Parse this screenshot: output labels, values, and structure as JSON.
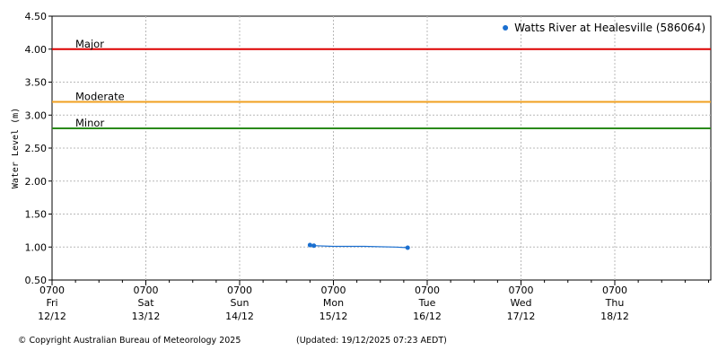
{
  "chart_data": {
    "type": "line",
    "ylabel": "Water Level (m)",
    "ylim": [
      0.5,
      4.5
    ],
    "yticks": [
      "0.50",
      "1.00",
      "1.50",
      "2.00",
      "2.50",
      "3.00",
      "3.50",
      "4.00",
      "4.50"
    ],
    "xlim_hours": [
      0,
      174
    ],
    "xticks": [
      {
        "time": "0700",
        "day": "Fri",
        "date": "12/12"
      },
      {
        "time": "0700",
        "day": "Sat",
        "date": "13/12"
      },
      {
        "time": "0700",
        "day": "Sun",
        "date": "14/12"
      },
      {
        "time": "0700",
        "day": "Mon",
        "date": "15/12"
      },
      {
        "time": "0700",
        "day": "Tue",
        "date": "16/12"
      },
      {
        "time": "0700",
        "day": "Wed",
        "date": "17/12"
      },
      {
        "time": "0700",
        "day": "Thu",
        "date": "18/12"
      }
    ],
    "grid": true,
    "legend_position": "top-right",
    "thresholds": [
      {
        "name": "Major",
        "value": 4.0,
        "color": "#dd0000"
      },
      {
        "name": "Moderate",
        "value": 3.2,
        "color": "#f0a020"
      },
      {
        "name": "Minor",
        "value": 2.8,
        "color": "#2a8a1a"
      }
    ],
    "series": [
      {
        "name": "Watts River at Healesville (586064)",
        "color": "#1a6fd0",
        "x": [
          66.0,
          67.0,
          67.5,
          72.0,
          80.0,
          88.0,
          91.0
        ],
        "y": [
          1.03,
          1.02,
          1.02,
          1.01,
          1.01,
          1.0,
          0.99
        ],
        "markers_at": [
          0,
          1,
          6
        ]
      }
    ]
  },
  "footer": {
    "copyright": "© Copyright Australian Bureau of Meteorology 2025",
    "updated": "(Updated: 19/12/2025 07:23 AEDT)"
  }
}
